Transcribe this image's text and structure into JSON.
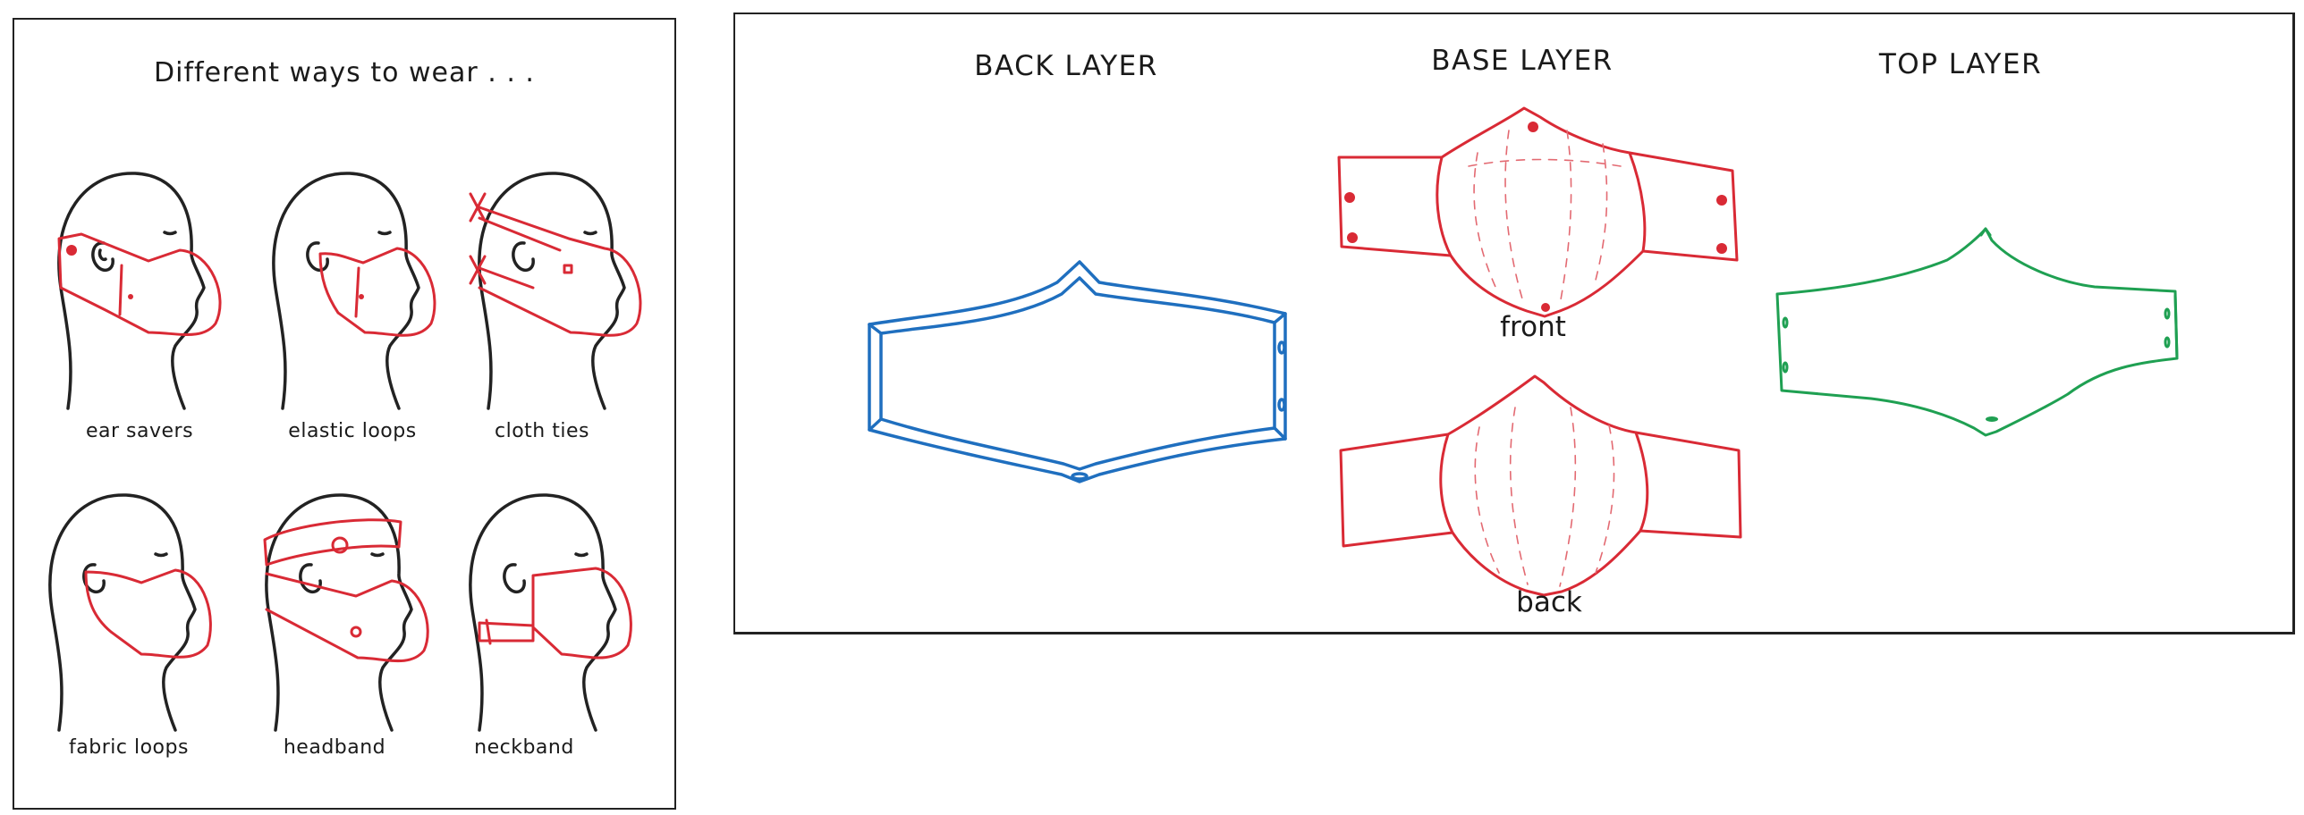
{
  "left_panel": {
    "title": "Different ways to wear . . .",
    "styles": [
      {
        "label": "ear savers"
      },
      {
        "label": "elastic loops"
      },
      {
        "label": "cloth ties"
      },
      {
        "label": "fabric loops"
      },
      {
        "label": "headband"
      },
      {
        "label": "neckband"
      }
    ]
  },
  "right_panel": {
    "layers": [
      {
        "heading": "BACK LAYER"
      },
      {
        "heading": "BASE LAYER"
      },
      {
        "heading": "TOP LAYER"
      }
    ],
    "base_views": {
      "front": "front",
      "back": "back"
    }
  },
  "colors": {
    "ink": "#222222",
    "base_layer": "#d92a35",
    "back_layer": "#1f6fbf",
    "top_layer": "#1fa052"
  }
}
